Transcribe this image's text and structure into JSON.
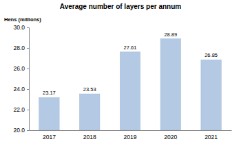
{
  "chart_data": {
    "type": "bar",
    "title": "Average number of layers per annum",
    "y_label": "Hens (millions)",
    "categories": [
      "2017",
      "2018",
      "2019",
      "2020",
      "2021"
    ],
    "values": [
      23.17,
      23.53,
      27.61,
      28.89,
      26.85
    ],
    "color": "#b4c9e4",
    "ylim": [
      20,
      30
    ],
    "yticks": [
      {
        "value": 20,
        "label": "20.0"
      },
      {
        "value": 22,
        "label": "22.0"
      },
      {
        "value": 24,
        "label": "24.0"
      },
      {
        "value": 26,
        "label": "26.0"
      },
      {
        "value": 28,
        "label": "28.0"
      },
      {
        "value": 30,
        "label": "30.0"
      }
    ],
    "grid": false,
    "data_labels": true
  }
}
